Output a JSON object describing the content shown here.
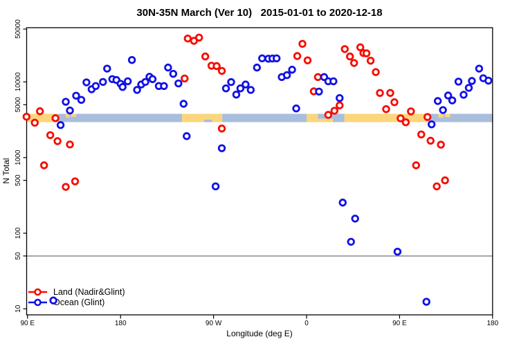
{
  "title": "30N-35N March (Ver 10)   2015-01-01 to 2020-12-18",
  "legend": {
    "items": [
      {
        "label": "Land (Nadir&Glint)",
        "color": "#f80b00"
      },
      {
        "label": "Ocean (Glint)",
        "color": "#1111e6"
      }
    ]
  },
  "chart_data": {
    "type": "scatter",
    "title": "30N-35N March (Ver 10)   2015-01-01 to 2020-12-18",
    "xlabel": "Longitude (deg E)",
    "ylabel": "N Total",
    "y_scale": "log",
    "ylim": [
      8,
      55000
    ],
    "y_ticks": [
      {
        "value": 50000,
        "label": "50000"
      },
      {
        "value": 10000,
        "label": "10000"
      },
      {
        "value": 5000,
        "label": "5000"
      },
      {
        "value": 1000,
        "label": "1000"
      },
      {
        "value": 500,
        "label": "500"
      },
      {
        "value": 100,
        "label": "100"
      },
      {
        "value": 50,
        "label": "50"
      },
      {
        "value": 10,
        "label": "10"
      }
    ],
    "x_ticks": [
      {
        "value": 90,
        "label": "90 E"
      },
      {
        "value": 180,
        "label": "180"
      },
      {
        "value": 270,
        "label": "90 W"
      },
      {
        "value": 360,
        "label": "0"
      },
      {
        "value": 450,
        "label": "90 E"
      },
      {
        "value": 540,
        "label": "180"
      }
    ],
    "x_axis_note": "longitude plotted eastward from 90E wrapping through 180, 90W, 0, 90E to 180 (90-540 in sequential degrees)",
    "reference_line_y": 50,
    "grid": false,
    "legend_position": "bottom-left",
    "series": [
      {
        "name": "Land (Nadir&Glint)",
        "color": "#f80b00",
        "marker": "open-circle",
        "points": [
          [
            89,
            3470
          ],
          [
            97,
            2890
          ],
          [
            102,
            4100
          ],
          [
            106,
            790
          ],
          [
            112,
            1980
          ],
          [
            117,
            3320
          ],
          [
            119,
            1650
          ],
          [
            127,
            410
          ],
          [
            131,
            1490
          ],
          [
            136,
            485
          ],
          [
            242,
            11100
          ],
          [
            245,
            37500
          ],
          [
            251,
            35000
          ],
          [
            256,
            38600
          ],
          [
            262,
            21700
          ],
          [
            268,
            16400
          ],
          [
            273,
            16200
          ],
          [
            278,
            14000
          ],
          [
            278,
            2420
          ],
          [
            351,
            22000
          ],
          [
            356,
            31900
          ],
          [
            361,
            19300
          ],
          [
            367,
            7510
          ],
          [
            371,
            11600
          ],
          [
            381,
            3670
          ],
          [
            387,
            4160
          ],
          [
            392,
            4900
          ],
          [
            397,
            27200
          ],
          [
            402,
            21700
          ],
          [
            406,
            17800
          ],
          [
            412,
            28700
          ],
          [
            415,
            24100
          ],
          [
            418,
            23900
          ],
          [
            422,
            19100
          ],
          [
            427,
            13500
          ],
          [
            431,
            7150
          ],
          [
            437,
            4370
          ],
          [
            441,
            7150
          ],
          [
            445,
            5390
          ],
          [
            451,
            3300
          ],
          [
            456,
            2930
          ],
          [
            461,
            4080
          ],
          [
            466,
            790
          ],
          [
            471,
            2020
          ],
          [
            477,
            3440
          ],
          [
            480,
            1670
          ],
          [
            486,
            416
          ],
          [
            490,
            1480
          ],
          [
            494,
            500
          ]
        ]
      },
      {
        "name": "Ocean (Glint)",
        "color": "#1111e6",
        "marker": "open-circle",
        "points": [
          [
            115,
            12.9
          ],
          [
            122,
            2690
          ],
          [
            127,
            5470
          ],
          [
            131,
            4190
          ],
          [
            137,
            6580
          ],
          [
            142,
            5790
          ],
          [
            147,
            9870
          ],
          [
            152,
            8000
          ],
          [
            156,
            8830
          ],
          [
            163,
            10000
          ],
          [
            167,
            15000
          ],
          [
            172,
            10900
          ],
          [
            176,
            10600
          ],
          [
            180,
            9460
          ],
          [
            182,
            8580
          ],
          [
            187,
            10200
          ],
          [
            191,
            19500
          ],
          [
            196,
            7840
          ],
          [
            200,
            9250
          ],
          [
            204,
            10000
          ],
          [
            208,
            11700
          ],
          [
            211,
            10900
          ],
          [
            217,
            8830
          ],
          [
            222,
            8830
          ],
          [
            226,
            15500
          ],
          [
            231,
            12800
          ],
          [
            236,
            9550
          ],
          [
            241,
            5140
          ],
          [
            244,
            1920
          ],
          [
            272,
            416
          ],
          [
            278,
            1330
          ],
          [
            282,
            8220
          ],
          [
            287,
            9960
          ],
          [
            292,
            6800
          ],
          [
            296,
            8220
          ],
          [
            301,
            9250
          ],
          [
            306,
            7840
          ],
          [
            312,
            15500
          ],
          [
            317,
            20500
          ],
          [
            323,
            20300
          ],
          [
            327,
            20400
          ],
          [
            331,
            20500
          ],
          [
            336,
            11600
          ],
          [
            341,
            12300
          ],
          [
            346,
            14500
          ],
          [
            350,
            4460
          ],
          [
            372,
            7460
          ],
          [
            377,
            11600
          ],
          [
            381,
            10200
          ],
          [
            386,
            10200
          ],
          [
            392,
            6120
          ],
          [
            395,
            254
          ],
          [
            403,
            77
          ],
          [
            407,
            156
          ],
          [
            448,
            57
          ],
          [
            476,
            12.4
          ],
          [
            481,
            2750
          ],
          [
            487,
            5590
          ],
          [
            492,
            4250
          ],
          [
            497,
            6620
          ],
          [
            501,
            5700
          ],
          [
            507,
            10100
          ],
          [
            512,
            6760
          ],
          [
            517,
            8350
          ],
          [
            520,
            10300
          ],
          [
            527,
            15000
          ],
          [
            531,
            11200
          ],
          [
            536,
            10400
          ]
        ]
      }
    ],
    "land_ocean_band": {
      "description": "horizontal strip showing land (tan) vs ocean (light blue) surface along 30N-35N",
      "value_range": [
        2940,
        3790
      ],
      "colors": {
        "land": "#fbd67c",
        "ocean": "#a9bedc"
      },
      "segments": [
        {
          "from": 89,
          "to": 119.6,
          "surface": "land"
        },
        {
          "from": 119.6,
          "to": 239.5,
          "surface": "ocean"
        },
        {
          "from": 239.5,
          "to": 278.4,
          "surface": "land"
        },
        {
          "from": 278.4,
          "to": 360,
          "surface": "ocean"
        },
        {
          "from": 360,
          "to": 478,
          "surface": "land"
        },
        {
          "from": 478,
          "to": 540.5,
          "surface": "ocean"
        }
      ],
      "patches": [
        {
          "from": 127,
          "to": 130.5,
          "surface": "land",
          "top": 0,
          "bottom": 0.45
        },
        {
          "from": 132,
          "to": 137,
          "surface": "land",
          "top": 0,
          "bottom": 0.35
        },
        {
          "from": 371,
          "to": 385.5,
          "surface": "ocean",
          "top": 0,
          "bottom": 0.6
        },
        {
          "from": 385.5,
          "to": 396.5,
          "surface": "ocean",
          "top": 0,
          "bottom": 1
        },
        {
          "from": 487.5,
          "to": 492.5,
          "surface": "land",
          "top": 0,
          "bottom": 0.45
        },
        {
          "from": 494,
          "to": 499,
          "surface": "land",
          "top": 0,
          "bottom": 0.4
        },
        {
          "from": 261,
          "to": 268.5,
          "surface": "ocean",
          "top": 0.7,
          "bottom": 1
        }
      ]
    }
  }
}
